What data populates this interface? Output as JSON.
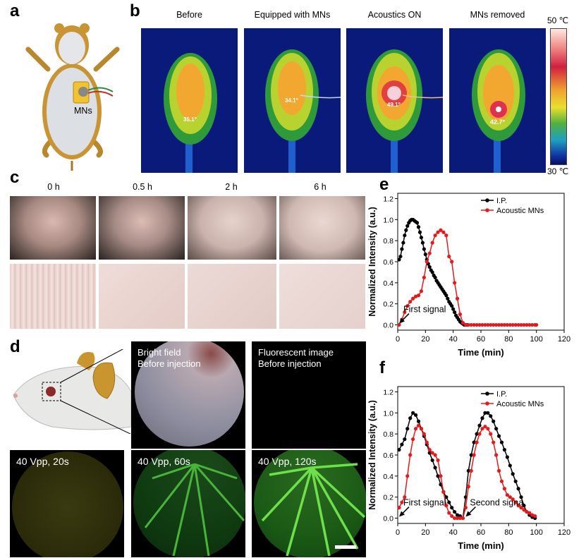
{
  "panels": {
    "a": "a",
    "b": "b",
    "c": "c",
    "d": "d",
    "e": "e",
    "f": "f"
  },
  "panel_a": {
    "label": "MNs"
  },
  "panel_b": {
    "titles": [
      "Before",
      "Equipped with MNs",
      "Acoustics ON",
      "MNs removed"
    ],
    "temps": [
      "35.1°",
      "34.1°",
      "49.1°",
      "42.7°"
    ],
    "scale_max": "50 ℃",
    "scale_min": "30 ℃"
  },
  "panel_c": {
    "times": [
      "0 h",
      "0.5 h",
      "2 h",
      "6 h"
    ]
  },
  "panel_d": {
    "bright_title": "Bright field",
    "bright_sub": "Before injection",
    "fluor_title": "Fluorescent image",
    "fluor_sub": "Before injection",
    "captions": [
      "40 Vpp, 20s",
      "40 Vpp, 60s",
      "40 Vpp, 120s"
    ]
  },
  "chart_data": [
    {
      "type": "line",
      "title": "e",
      "xlabel": "Time (min)",
      "ylabel": "Normalized Intensity (a.u.)",
      "xlim": [
        0,
        120
      ],
      "ylim": [
        -0.05,
        1.25
      ],
      "xticks": [
        0,
        20,
        40,
        60,
        80,
        100,
        120
      ],
      "yticks": [
        0.0,
        0.2,
        0.4,
        0.6,
        0.8,
        1.0,
        1.2
      ],
      "annotation": "First signal",
      "series": [
        {
          "name": "I.P.",
          "color": "#000000",
          "x": [
            1,
            2,
            3,
            4,
            5,
            6,
            7,
            8,
            9,
            10,
            11,
            12,
            13,
            14,
            15,
            16,
            17,
            18,
            19,
            20,
            21,
            22,
            23,
            24,
            25,
            26,
            27,
            28,
            29,
            30,
            31,
            32,
            33,
            34,
            35,
            36,
            37,
            38,
            39,
            40,
            41,
            42,
            43,
            44,
            45,
            46,
            47,
            48,
            49,
            50
          ],
          "y": [
            0.62,
            0.65,
            0.72,
            0.78,
            0.85,
            0.9,
            0.94,
            0.97,
            0.99,
            1.0,
            1.0,
            0.99,
            0.98,
            0.97,
            0.93,
            0.88,
            0.83,
            0.78,
            0.72,
            0.67,
            0.62,
            0.58,
            0.55,
            0.52,
            0.5,
            0.47,
            0.45,
            0.42,
            0.4,
            0.38,
            0.36,
            0.34,
            0.32,
            0.3,
            0.28,
            0.25,
            0.22,
            0.2,
            0.18,
            0.15,
            0.12,
            0.09,
            0.07,
            0.05,
            0.03,
            0.02,
            0.01,
            0.0,
            0.0,
            0.0
          ]
        },
        {
          "name": "Acoustic MNs",
          "color": "#e41a1c",
          "x": [
            1,
            3,
            5,
            7,
            9,
            11,
            13,
            15,
            17,
            19,
            21,
            23,
            25,
            27,
            29,
            31,
            33,
            35,
            37,
            39,
            41,
            43,
            45,
            47,
            49,
            51,
            53,
            55,
            57,
            59,
            61,
            63,
            65,
            67,
            69,
            71,
            73,
            75,
            77,
            79,
            81,
            83,
            85,
            87,
            89,
            91,
            93,
            95,
            97,
            99,
            100
          ],
          "y": [
            0.0,
            0.05,
            0.12,
            0.18,
            0.22,
            0.25,
            0.27,
            0.28,
            0.32,
            0.45,
            0.6,
            0.68,
            0.78,
            0.85,
            0.88,
            0.9,
            0.88,
            0.85,
            0.65,
            0.6,
            0.4,
            0.25,
            0.1,
            0.02,
            0.0,
            0.0,
            0.0,
            0.0,
            0.0,
            0.0,
            0.0,
            0.0,
            0.0,
            0.0,
            0.0,
            0.0,
            0.0,
            0.0,
            0.0,
            0.0,
            0.0,
            0.0,
            0.0,
            0.0,
            0.0,
            0.0,
            0.0,
            0.0,
            0.0,
            0.0,
            0.0
          ]
        }
      ]
    },
    {
      "type": "line",
      "title": "f",
      "xlabel": "Time (min)",
      "ylabel": "Normalized Intensity (a.u.)",
      "xlim": [
        0,
        120
      ],
      "ylim": [
        -0.05,
        1.25
      ],
      "xticks": [
        0,
        20,
        40,
        60,
        80,
        100,
        120
      ],
      "yticks": [
        0.0,
        0.2,
        0.4,
        0.6,
        0.8,
        1.0,
        1.2
      ],
      "annotations": [
        "First signal",
        "Second signa"
      ],
      "series": [
        {
          "name": "I.P.",
          "color": "#000000",
          "x": [
            1,
            3,
            5,
            7,
            9,
            11,
            13,
            15,
            17,
            19,
            21,
            23,
            25,
            27,
            29,
            31,
            33,
            35,
            37,
            39,
            41,
            43,
            45,
            47,
            49,
            51,
            53,
            55,
            57,
            59,
            61,
            63,
            65,
            67,
            69,
            71,
            73,
            75,
            77,
            79,
            81,
            83,
            85,
            87,
            89,
            91,
            93,
            95,
            97,
            99
          ],
          "y": [
            0.65,
            0.7,
            0.75,
            0.85,
            0.95,
            1.0,
            0.98,
            0.92,
            0.85,
            0.78,
            0.7,
            0.62,
            0.55,
            0.48,
            0.4,
            0.32,
            0.25,
            0.2,
            0.15,
            0.1,
            0.06,
            0.03,
            0.02,
            0.0,
            0.2,
            0.45,
            0.6,
            0.72,
            0.8,
            0.88,
            0.95,
            1.0,
            1.0,
            0.97,
            0.92,
            0.85,
            0.78,
            0.72,
            0.65,
            0.58,
            0.5,
            0.42,
            0.35,
            0.28,
            0.2,
            0.12,
            0.06,
            0.03,
            0.01,
            0.0
          ]
        },
        {
          "name": "Acoustic MNs",
          "color": "#e41a1c",
          "x": [
            1,
            3,
            5,
            7,
            9,
            11,
            13,
            15,
            17,
            19,
            21,
            23,
            25,
            27,
            29,
            31,
            33,
            35,
            37,
            39,
            41,
            43,
            45,
            47,
            49,
            51,
            53,
            55,
            57,
            59,
            61,
            63,
            65,
            67,
            69,
            71,
            73,
            75,
            77,
            79,
            81,
            83,
            85,
            87,
            89,
            91,
            93,
            95,
            97,
            99
          ],
          "y": [
            0.1,
            0.15,
            0.2,
            0.4,
            0.6,
            0.75,
            0.85,
            0.88,
            0.85,
            0.8,
            0.72,
            0.65,
            0.62,
            0.6,
            0.55,
            0.4,
            0.25,
            0.12,
            0.05,
            0.02,
            0.0,
            0.0,
            0.0,
            0.0,
            0.1,
            0.3,
            0.45,
            0.6,
            0.72,
            0.8,
            0.85,
            0.87,
            0.85,
            0.8,
            0.72,
            0.6,
            0.45,
            0.35,
            0.28,
            0.22,
            0.2,
            0.18,
            0.15,
            0.12,
            0.1,
            0.08,
            0.06,
            0.05,
            0.03,
            0.02
          ]
        }
      ]
    }
  ]
}
